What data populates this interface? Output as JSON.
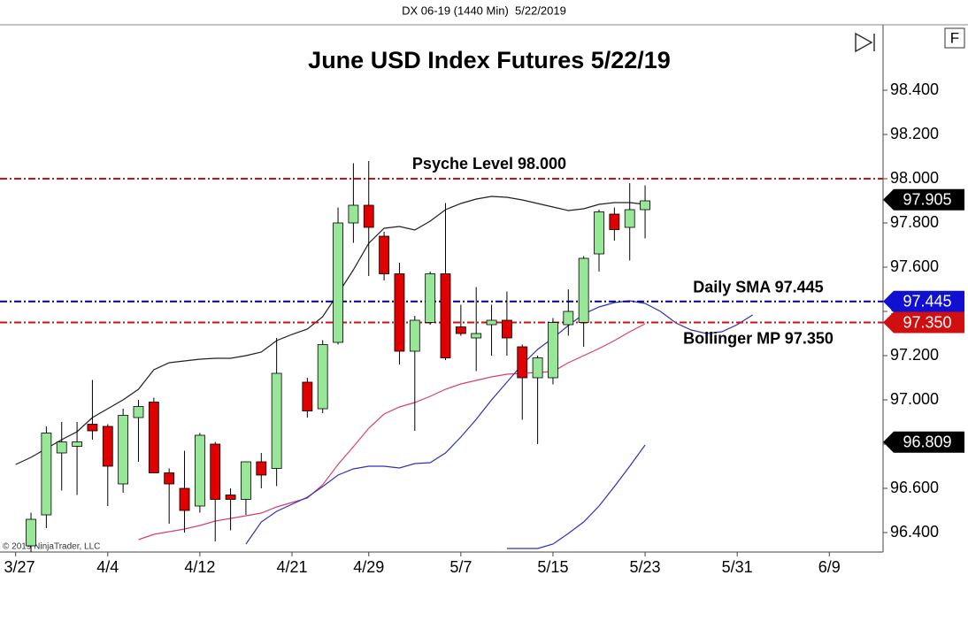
{
  "header": "DX 06-19 (1440 Min)  5/22/2019",
  "copyright": "© 2019 NinjaTrader, LLC",
  "button": "F",
  "chart_data": {
    "type": "candlestick",
    "title": "June USD Index Futures 5/22/19",
    "categories": [
      "3/27",
      null,
      null,
      null,
      null,
      null,
      "4/4",
      null,
      null,
      null,
      null,
      null,
      "4/12",
      null,
      null,
      null,
      null,
      null,
      "4/21",
      null,
      null,
      null,
      null,
      "4/29",
      null,
      null,
      null,
      null,
      null,
      "5/7",
      null,
      null,
      null,
      null,
      null,
      "5/15",
      null,
      null,
      null,
      null,
      null,
      "5/23",
      null,
      null,
      null,
      null,
      null,
      "5/31",
      null,
      null,
      null,
      null,
      null,
      "6/9",
      null,
      null,
      null
    ],
    "open": [
      null,
      96.34,
      96.48,
      96.76,
      96.79,
      96.89,
      96.88,
      96.62,
      96.92,
      96.99,
      96.67,
      96.6,
      96.52,
      96.8,
      96.57,
      96.55,
      96.72,
      96.69,
      null,
      97.08,
      96.96,
      97.26,
      97.8,
      97.88,
      97.74,
      97.57,
      97.22,
      97.35,
      97.57,
      97.33,
      97.28,
      97.34,
      97.36,
      97.24,
      97.1,
      97.1,
      97.34,
      97.35,
      97.66,
      97.84,
      97.78,
      97.86,
      null,
      null,
      null,
      null,
      null,
      null,
      null,
      null,
      null,
      null,
      null,
      null,
      null,
      null,
      null
    ],
    "high": [
      null,
      96.49,
      96.88,
      96.9,
      96.9,
      97.09,
      96.89,
      96.96,
      97.0,
      97.01,
      96.69,
      96.77,
      96.85,
      96.81,
      96.6,
      96.72,
      96.76,
      97.28,
      null,
      97.1,
      97.27,
      97.87,
      98.07,
      98.08,
      97.76,
      97.62,
      97.38,
      97.58,
      97.89,
      97.43,
      97.51,
      97.43,
      97.49,
      97.25,
      97.2,
      97.37,
      97.5,
      97.65,
      97.86,
      97.87,
      97.98,
      97.97,
      null,
      null,
      null,
      null,
      null,
      null,
      null,
      null,
      null,
      null,
      null,
      null,
      null,
      null,
      null
    ],
    "low": [
      null,
      96.3,
      96.42,
      96.59,
      96.57,
      96.82,
      96.52,
      96.58,
      96.72,
      96.67,
      96.44,
      96.4,
      96.49,
      96.36,
      96.41,
      96.48,
      96.6,
      96.61,
      null,
      96.92,
      96.94,
      97.25,
      97.71,
      97.56,
      97.54,
      97.16,
      96.86,
      97.34,
      97.18,
      97.29,
      97.13,
      97.2,
      97.2,
      96.91,
      96.8,
      97.07,
      97.29,
      97.24,
      97.58,
      97.72,
      97.63,
      97.73,
      null,
      null,
      null,
      null,
      null,
      null,
      null,
      null,
      null,
      null,
      null,
      null,
      null,
      null,
      null
    ],
    "close": [
      null,
      96.46,
      96.85,
      96.81,
      96.81,
      96.86,
      96.7,
      96.93,
      96.97,
      96.67,
      96.62,
      96.5,
      96.84,
      96.55,
      96.55,
      96.72,
      96.66,
      97.12,
      null,
      96.95,
      97.25,
      97.8,
      97.88,
      97.78,
      97.57,
      97.22,
      97.36,
      97.57,
      97.19,
      97.3,
      97.3,
      97.36,
      97.28,
      97.1,
      97.19,
      97.35,
      97.4,
      97.64,
      97.85,
      97.77,
      97.86,
      97.9,
      null,
      null,
      null,
      null,
      null,
      null,
      null,
      null,
      null,
      null,
      null,
      null,
      null,
      null,
      null
    ],
    "up_color": "#98e698",
    "down_color": "#e00000",
    "series": [
      {
        "color": "#202020",
        "values": [
          96.708,
          96.74,
          96.78,
          96.82,
          96.856,
          96.92,
          96.96,
          97.0,
          97.048,
          97.136,
          97.168,
          97.176,
          97.184,
          97.188,
          97.188,
          97.2,
          97.216,
          97.268,
          97.296,
          97.32,
          97.376,
          97.48,
          97.588,
          97.708,
          97.776,
          97.784,
          97.768,
          97.808,
          97.86,
          97.888,
          97.908,
          97.92,
          97.916,
          97.904,
          97.888,
          97.872,
          97.856,
          97.864,
          97.884,
          97.892,
          97.892,
          97.884,
          null,
          null,
          null,
          null,
          null,
          null,
          null,
          null,
          null,
          null,
          null,
          null,
          null,
          null,
          null
        ]
      },
      {
        "color": "#d8406e",
        "values": [
          null,
          null,
          null,
          null,
          null,
          null,
          null,
          null,
          96.368,
          96.392,
          96.404,
          96.416,
          96.432,
          96.452,
          96.464,
          96.476,
          96.488,
          96.516,
          96.536,
          96.556,
          96.616,
          96.708,
          96.788,
          96.872,
          96.936,
          96.968,
          96.988,
          97.016,
          97.048,
          97.072,
          97.088,
          97.104,
          97.116,
          97.12,
          97.124,
          97.128,
          97.168,
          97.2,
          97.232,
          97.268,
          97.308,
          97.344,
          null,
          null,
          null,
          null,
          null,
          null,
          null,
          null,
          null,
          null,
          null,
          null,
          null,
          null,
          null
        ]
      },
      {
        "color": "#3030b8",
        "values": [
          null,
          null,
          null,
          null,
          null,
          null,
          null,
          null,
          null,
          null,
          null,
          null,
          null,
          null,
          null,
          96.348,
          96.448,
          96.496,
          96.528,
          96.56,
          96.608,
          96.66,
          96.688,
          96.7,
          96.7,
          96.692,
          96.712,
          96.716,
          96.76,
          96.832,
          96.912,
          97.0,
          97.08,
          97.16,
          97.228,
          97.28,
          97.336,
          97.388,
          97.42,
          97.44,
          97.448,
          97.436,
          97.4,
          97.348,
          97.316,
          97.3,
          97.308,
          97.34,
          97.384,
          null,
          null,
          null,
          null,
          null,
          null,
          null,
          null
        ]
      },
      {
        "color": "#3030b8",
        "values": [
          null,
          null,
          null,
          null,
          null,
          null,
          null,
          null,
          null,
          null,
          null,
          null,
          null,
          null,
          null,
          null,
          null,
          null,
          null,
          null,
          null,
          null,
          null,
          null,
          null,
          null,
          null,
          null,
          null,
          null,
          null,
          null,
          96.328,
          96.328,
          96.328,
          96.348,
          96.396,
          96.448,
          96.52,
          96.608,
          96.7,
          96.796,
          null,
          null,
          null,
          null,
          null,
          null,
          null,
          null,
          null,
          null,
          null,
          null,
          null,
          null,
          null
        ]
      }
    ],
    "levels": [
      {
        "value": 98.0,
        "label": "Psyche Level 98.000",
        "color": "#d01010"
      },
      {
        "value": 97.445,
        "label": "Daily SMA 97.445",
        "color": "#00008b"
      },
      {
        "value": 97.35,
        "label": "Bollinger MP 97.350",
        "color": "#d01010"
      }
    ],
    "price_tags": [
      {
        "value": 97.905,
        "label": "97.905",
        "color": "#000000"
      },
      {
        "value": 97.445,
        "label": "97.445",
        "color": "#1010d0"
      },
      {
        "value": 97.35,
        "label": "97.350",
        "color": "#d01010"
      },
      {
        "value": 96.809,
        "label": "96.809",
        "color": "#000000"
      }
    ],
    "ylim": [
      96.312,
      98.696
    ],
    "yticks": [
      {
        "value": 96.4,
        "label": "96.400"
      },
      {
        "value": 96.6,
        "label": "96.600"
      },
      {
        "value": 96.8,
        "label": "96.800"
      },
      {
        "value": 97.0,
        "label": "97.000"
      },
      {
        "value": 97.2,
        "label": "97.200"
      },
      {
        "value": 97.4,
        "label": "97.400"
      },
      {
        "value": 97.6,
        "label": "97.600"
      },
      {
        "value": 97.8,
        "label": "97.800"
      },
      {
        "value": 98.0,
        "label": "98.000"
      },
      {
        "value": 98.2,
        "label": "98.200"
      },
      {
        "value": 98.4,
        "label": "98.400"
      }
    ],
    "grid": false
  }
}
